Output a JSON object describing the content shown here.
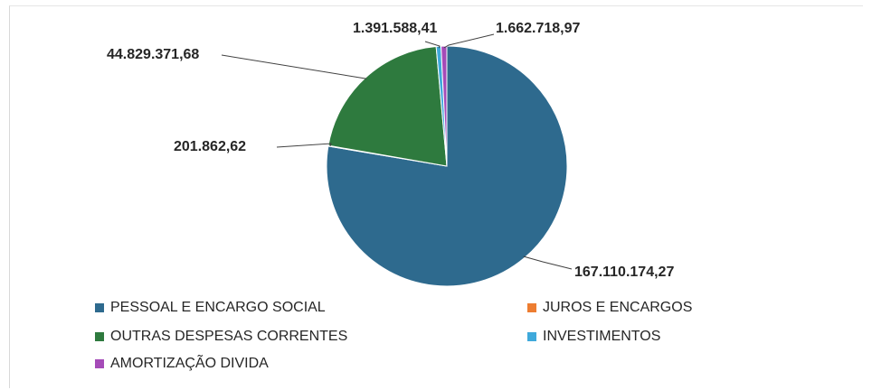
{
  "chart_data": {
    "type": "pie",
    "title": "",
    "slices": [
      {
        "name": "PESSOAL E ENCARGO SOCIAL",
        "value": 167110174.27,
        "label": "167.110.174,27",
        "color": "#2E6A8E"
      },
      {
        "name": "JUROS E ENCARGOS",
        "value": 201862.62,
        "label": "201.862,62",
        "color": "#ED7D31"
      },
      {
        "name": "OUTRAS DESPESAS CORRENTES",
        "value": 44829371.68,
        "label": "44.829.371,68",
        "color": "#2E7A3E"
      },
      {
        "name": "INVESTIMENTOS",
        "value": 1391588.41,
        "label": "1.391.588,41",
        "color": "#3FA9DB"
      },
      {
        "name": "AMORTIZAÇÃO DIVIDA",
        "value": 1662718.97,
        "label": "1.662.718,97",
        "color": "#A54BB8"
      }
    ],
    "legend_position": "bottom"
  }
}
